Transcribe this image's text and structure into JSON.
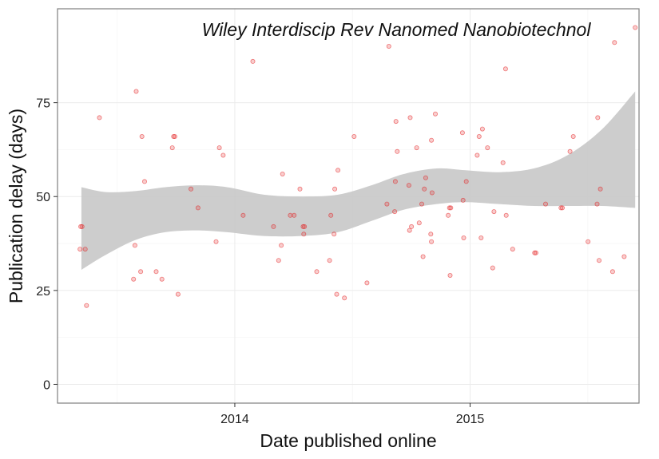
{
  "chart_data": {
    "type": "scatter",
    "title": "Wiley Interdiscip Rev Nanomed Nanobiotechnol",
    "xlabel": "Date published online",
    "ylabel": "Publication delay (days)",
    "xlim": [
      "2013-04-01",
      "2015-09-20"
    ],
    "ylim": [
      -5,
      100
    ],
    "x_ticks": [
      {
        "value": "2014-01-01",
        "label": "2014"
      },
      {
        "value": "2015-01-01",
        "label": "2015"
      }
    ],
    "y_ticks": [
      {
        "value": 0,
        "label": "0"
      },
      {
        "value": 25,
        "label": "25"
      },
      {
        "value": 50,
        "label": "50"
      },
      {
        "value": 75,
        "label": "75"
      }
    ],
    "grid": true,
    "point_color": "#e41a1c",
    "band_color": "#c8c8c8",
    "points": [
      {
        "x": "2013-05-07",
        "y": 42
      },
      {
        "x": "2013-05-06",
        "y": 36
      },
      {
        "x": "2013-05-09",
        "y": 42
      },
      {
        "x": "2013-05-14",
        "y": 36
      },
      {
        "x": "2013-05-16",
        "y": 21
      },
      {
        "x": "2013-06-05",
        "y": 71
      },
      {
        "x": "2013-07-28",
        "y": 28
      },
      {
        "x": "2013-07-30",
        "y": 37
      },
      {
        "x": "2013-08-01",
        "y": 78
      },
      {
        "x": "2013-08-08",
        "y": 30
      },
      {
        "x": "2013-08-10",
        "y": 66
      },
      {
        "x": "2013-08-14",
        "y": 54
      },
      {
        "x": "2013-09-01",
        "y": 30
      },
      {
        "x": "2013-09-10",
        "y": 28
      },
      {
        "x": "2013-09-26",
        "y": 63
      },
      {
        "x": "2013-09-28",
        "y": 66
      },
      {
        "x": "2013-09-30",
        "y": 66
      },
      {
        "x": "2013-10-05",
        "y": 24
      },
      {
        "x": "2013-10-25",
        "y": 52
      },
      {
        "x": "2013-11-05",
        "y": 47
      },
      {
        "x": "2013-12-03",
        "y": 38
      },
      {
        "x": "2013-12-08",
        "y": 63
      },
      {
        "x": "2013-12-14",
        "y": 61
      },
      {
        "x": "2014-01-14",
        "y": 45
      },
      {
        "x": "2014-01-29",
        "y": 86
      },
      {
        "x": "2014-03-02",
        "y": 42
      },
      {
        "x": "2014-03-10",
        "y": 33
      },
      {
        "x": "2014-03-14",
        "y": 37
      },
      {
        "x": "2014-03-16",
        "y": 56
      },
      {
        "x": "2014-03-28",
        "y": 45
      },
      {
        "x": "2014-04-03",
        "y": 45
      },
      {
        "x": "2014-04-12",
        "y": 52
      },
      {
        "x": "2014-04-17",
        "y": 42
      },
      {
        "x": "2014-04-18",
        "y": 40
      },
      {
        "x": "2014-04-19",
        "y": 42
      },
      {
        "x": "2014-05-08",
        "y": 30
      },
      {
        "x": "2014-05-28",
        "y": 33
      },
      {
        "x": "2014-05-30",
        "y": 45
      },
      {
        "x": "2014-06-04",
        "y": 40
      },
      {
        "x": "2014-06-05",
        "y": 52
      },
      {
        "x": "2014-06-08",
        "y": 24
      },
      {
        "x": "2014-06-10",
        "y": 57
      },
      {
        "x": "2014-06-20",
        "y": 23
      },
      {
        "x": "2014-07-05",
        "y": 66
      },
      {
        "x": "2014-07-25",
        "y": 27
      },
      {
        "x": "2014-08-25",
        "y": 48
      },
      {
        "x": "2014-08-28",
        "y": 90
      },
      {
        "x": "2014-09-06",
        "y": 46
      },
      {
        "x": "2014-09-07",
        "y": 54
      },
      {
        "x": "2014-09-08",
        "y": 70
      },
      {
        "x": "2014-09-10",
        "y": 62
      },
      {
        "x": "2014-09-28",
        "y": 53
      },
      {
        "x": "2014-09-29",
        "y": 41
      },
      {
        "x": "2014-09-30",
        "y": 71
      },
      {
        "x": "2014-10-02",
        "y": 42
      },
      {
        "x": "2014-10-10",
        "y": 63
      },
      {
        "x": "2014-10-14",
        "y": 43
      },
      {
        "x": "2014-10-18",
        "y": 48
      },
      {
        "x": "2014-10-20",
        "y": 34
      },
      {
        "x": "2014-10-22",
        "y": 52
      },
      {
        "x": "2014-10-24",
        "y": 55
      },
      {
        "x": "2014-11-01",
        "y": 40
      },
      {
        "x": "2014-11-02",
        "y": 38
      },
      {
        "x": "2014-11-02",
        "y": 65
      },
      {
        "x": "2014-11-03",
        "y": 51
      },
      {
        "x": "2014-11-08",
        "y": 72
      },
      {
        "x": "2014-11-28",
        "y": 45
      },
      {
        "x": "2014-11-30",
        "y": 47
      },
      {
        "x": "2014-12-01",
        "y": 29
      },
      {
        "x": "2014-12-02",
        "y": 47
      },
      {
        "x": "2014-12-20",
        "y": 67
      },
      {
        "x": "2014-12-21",
        "y": 49
      },
      {
        "x": "2014-12-22",
        "y": 39
      },
      {
        "x": "2014-12-26",
        "y": 54
      },
      {
        "x": "2015-01-12",
        "y": 61
      },
      {
        "x": "2015-01-15",
        "y": 66
      },
      {
        "x": "2015-01-18",
        "y": 39
      },
      {
        "x": "2015-01-20",
        "y": 68
      },
      {
        "x": "2015-01-28",
        "y": 63
      },
      {
        "x": "2015-02-05",
        "y": 31
      },
      {
        "x": "2015-02-07",
        "y": 46
      },
      {
        "x": "2015-02-21",
        "y": 59
      },
      {
        "x": "2015-02-25",
        "y": 84
      },
      {
        "x": "2015-02-26",
        "y": 45
      },
      {
        "x": "2015-03-08",
        "y": 36
      },
      {
        "x": "2015-04-11",
        "y": 35
      },
      {
        "x": "2015-04-13",
        "y": 35
      },
      {
        "x": "2015-04-28",
        "y": 48
      },
      {
        "x": "2015-05-22",
        "y": 47
      },
      {
        "x": "2015-05-24",
        "y": 47
      },
      {
        "x": "2015-06-05",
        "y": 62
      },
      {
        "x": "2015-06-10",
        "y": 66
      },
      {
        "x": "2015-07-03",
        "y": 38
      },
      {
        "x": "2015-07-17",
        "y": 48
      },
      {
        "x": "2015-07-18",
        "y": 71
      },
      {
        "x": "2015-07-20",
        "y": 33
      },
      {
        "x": "2015-07-22",
        "y": 52
      },
      {
        "x": "2015-08-10",
        "y": 30
      },
      {
        "x": "2015-08-13",
        "y": 91
      },
      {
        "x": "2015-08-28",
        "y": 34
      },
      {
        "x": "2015-09-14",
        "y": 95
      }
    ],
    "smooth_band": [
      {
        "x": "2013-05-08",
        "lower": 30.5,
        "upper": 52.5
      },
      {
        "x": "2013-06-15",
        "lower": 34.5,
        "upper": 51.2
      },
      {
        "x": "2013-08-01",
        "lower": 38.5,
        "upper": 51.5
      },
      {
        "x": "2013-09-15",
        "lower": 40.5,
        "upper": 52.5
      },
      {
        "x": "2013-11-01",
        "lower": 41.0,
        "upper": 53.0
      },
      {
        "x": "2013-12-20",
        "lower": 40.5,
        "upper": 52.5
      },
      {
        "x": "2014-02-15",
        "lower": 39.5,
        "upper": 50.5
      },
      {
        "x": "2014-04-15",
        "lower": 39.5,
        "upper": 50.0
      },
      {
        "x": "2014-06-10",
        "lower": 40.5,
        "upper": 50.5
      },
      {
        "x": "2014-08-01",
        "lower": 43.5,
        "upper": 53.0
      },
      {
        "x": "2014-09-20",
        "lower": 46.5,
        "upper": 56.0
      },
      {
        "x": "2014-11-10",
        "lower": 48.0,
        "upper": 57.5
      },
      {
        "x": "2014-12-25",
        "lower": 48.5,
        "upper": 57.0
      },
      {
        "x": "2015-02-15",
        "lower": 48.0,
        "upper": 56.5
      },
      {
        "x": "2015-04-10",
        "lower": 47.5,
        "upper": 57.5
      },
      {
        "x": "2015-06-01",
        "lower": 47.5,
        "upper": 61.0
      },
      {
        "x": "2015-07-25",
        "lower": 47.5,
        "upper": 68.0
      },
      {
        "x": "2015-09-14",
        "lower": 47.0,
        "upper": 78.0
      }
    ]
  }
}
